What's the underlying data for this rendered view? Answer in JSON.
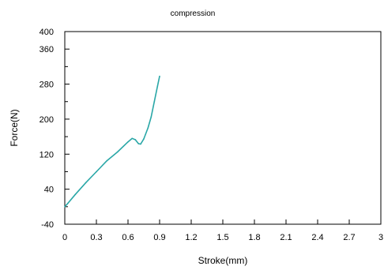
{
  "chart_data": {
    "type": "line",
    "title": "compression",
    "xlabel": "Stroke(mm)",
    "ylabel": "Force(N)",
    "xlim": [
      0,
      3
    ],
    "ylim": [
      -40,
      400
    ],
    "xticks": [
      0,
      0.3,
      0.6,
      0.9,
      1.2,
      1.5,
      1.8,
      2.1,
      2.4,
      2.7,
      3
    ],
    "xtick_labels": [
      "0",
      "0.3",
      "0.6",
      "0.9",
      "1.2",
      "1.5",
      "1.8",
      "2.1",
      "2.4",
      "2.7",
      "3"
    ],
    "yticks": [
      -40,
      40,
      120,
      200,
      280,
      360,
      400
    ],
    "ytick_labels": [
      "-40",
      "40",
      "120",
      "200",
      "280",
      "360",
      "400"
    ],
    "grid": false,
    "series": [
      {
        "color": "#2aa7a7",
        "x": [
          0,
          0.03,
          0.1,
          0.2,
          0.3,
          0.4,
          0.5,
          0.6,
          0.64,
          0.67,
          0.7,
          0.72,
          0.75,
          0.79,
          0.82,
          0.85,
          0.88,
          0.9
        ],
        "y": [
          0,
          8,
          28,
          55,
          80,
          105,
          125,
          148,
          156,
          153,
          144,
          143,
          155,
          180,
          205,
          240,
          275,
          298
        ]
      }
    ]
  }
}
